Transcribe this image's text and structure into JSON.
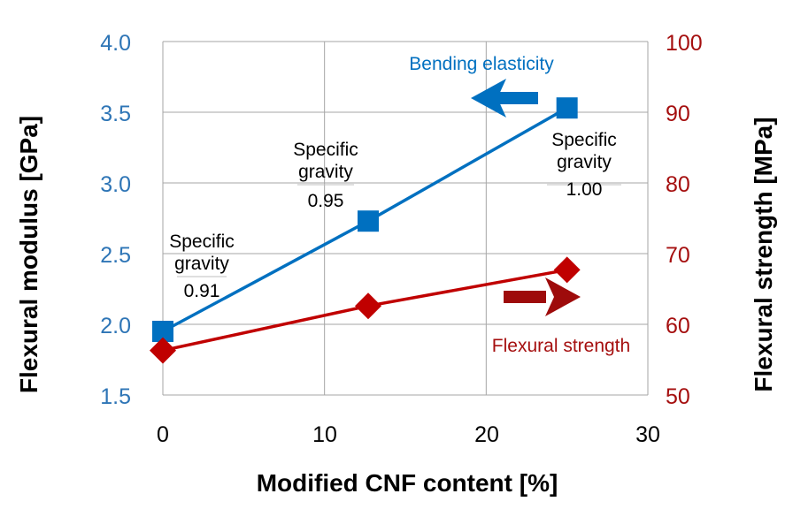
{
  "chart_data": {
    "type": "line",
    "xlabel": "Modified CNF content [%]",
    "ylabel_left": "Flexural modulus [GPa]",
    "ylabel_right": "Flexural strength [MPa]",
    "xlim": [
      0,
      30
    ],
    "ylim_left": [
      1.5,
      4.0
    ],
    "ylim_right": [
      50,
      100
    ],
    "x_ticks": [
      "0",
      "10",
      "20",
      "30"
    ],
    "y_left_ticks": [
      "1.5",
      "2.0",
      "2.5",
      "3.0",
      "3.5",
      "4.0"
    ],
    "y_right_ticks": [
      "50",
      "60",
      "70",
      "80",
      "90",
      "100"
    ],
    "grid": true,
    "series": [
      {
        "name": "Bending elasticity",
        "axis": "left",
        "marker": "square",
        "color": "#0070C0",
        "x": [
          0,
          12.7,
          25
        ],
        "y": [
          1.95,
          2.73,
          3.53
        ]
      },
      {
        "name": "Flexural strength",
        "axis": "right",
        "marker": "diamond",
        "color": "#C00000",
        "x": [
          0,
          12.7,
          25
        ],
        "y": [
          56.3,
          62.6,
          67.7
        ]
      }
    ],
    "annotations": [
      {
        "line1": "Specific",
        "line2": "gravity",
        "value": "0.91"
      },
      {
        "line1": "Specific",
        "line2": "gravity",
        "value": "0.95"
      },
      {
        "line1": "Specific",
        "line2": "gravity",
        "value": "1.00"
      }
    ],
    "colors": {
      "left_axis": "#2E75B6",
      "right_axis": "#A50F0F",
      "grid": "#A6A6A6",
      "arrow_left": "#0070C0",
      "arrow_right": "#9E0B0B"
    }
  }
}
